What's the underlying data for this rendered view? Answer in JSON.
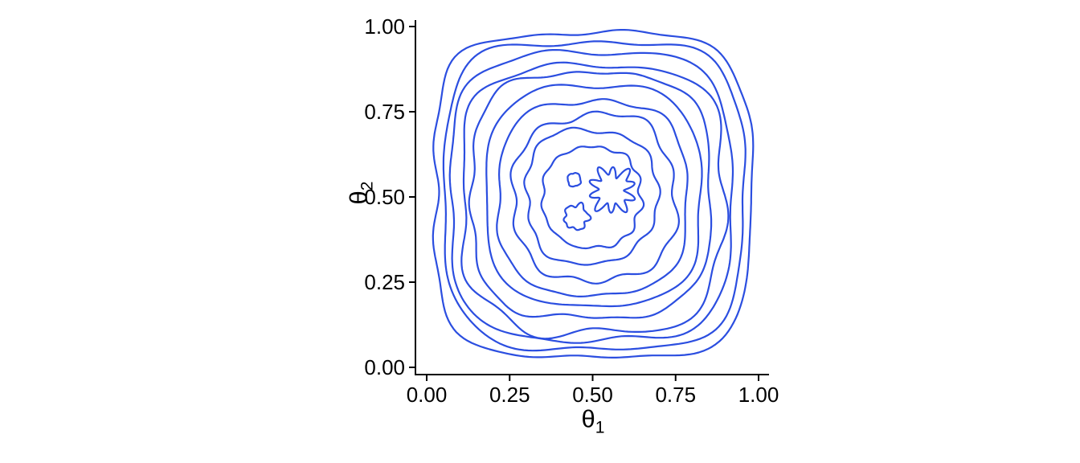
{
  "chart_data": {
    "type": "contour",
    "title": "",
    "xlabel": {
      "symbol": "θ",
      "sub": "1"
    },
    "ylabel": {
      "symbol": "θ",
      "sub": "2"
    },
    "x_ticks": [
      "0.00",
      "0.25",
      "0.50",
      "0.75",
      "1.00"
    ],
    "x_tick_values": [
      0,
      0.25,
      0.5,
      0.75,
      1
    ],
    "y_ticks": [
      "0.00",
      "0.25",
      "0.50",
      "0.75",
      "1.00"
    ],
    "y_tick_values": [
      0,
      0.25,
      0.5,
      0.75,
      1
    ],
    "xlim": [
      0,
      1
    ],
    "ylim": [
      0,
      1
    ],
    "grid": false,
    "legend": "none",
    "line_color": "#2b4ee0",
    "axis_color": "#000000",
    "center": [
      0.5,
      0.5
    ],
    "n_contour_levels": 10,
    "contour_rings": [
      {
        "R": 0.475,
        "n": 4.2,
        "wiggle": 0.018,
        "seed": 11
      },
      {
        "R": 0.449,
        "n": 4.0,
        "wiggle": 0.022,
        "seed": 22
      },
      {
        "R": 0.421,
        "n": 3.8,
        "wiggle": 0.024,
        "seed": 33
      },
      {
        "R": 0.391,
        "n": 3.6,
        "wiggle": 0.026,
        "seed": 44
      },
      {
        "R": 0.358,
        "n": 3.4,
        "wiggle": 0.028,
        "seed": 55
      },
      {
        "R": 0.322,
        "n": 3.2,
        "wiggle": 0.032,
        "seed": 66
      },
      {
        "R": 0.283,
        "n": 3.0,
        "wiggle": 0.036,
        "seed": 77
      },
      {
        "R": 0.241,
        "n": 2.8,
        "wiggle": 0.04,
        "seed": 88
      },
      {
        "R": 0.196,
        "n": 2.5,
        "wiggle": 0.045,
        "seed": 99
      },
      {
        "R": 0.148,
        "n": 2.3,
        "wiggle": 0.055,
        "seed": 110
      }
    ],
    "center_blobs": [
      {
        "cx": 0.555,
        "cy": 0.515,
        "r": 0.058,
        "wiggle": 0.22,
        "seed": 131
      },
      {
        "cx": 0.443,
        "cy": 0.555,
        "r": 0.02,
        "wiggle": 0.1,
        "seed": 142
      },
      {
        "cx": 0.452,
        "cy": 0.435,
        "r": 0.036,
        "wiggle": 0.2,
        "seed": 153
      }
    ]
  }
}
